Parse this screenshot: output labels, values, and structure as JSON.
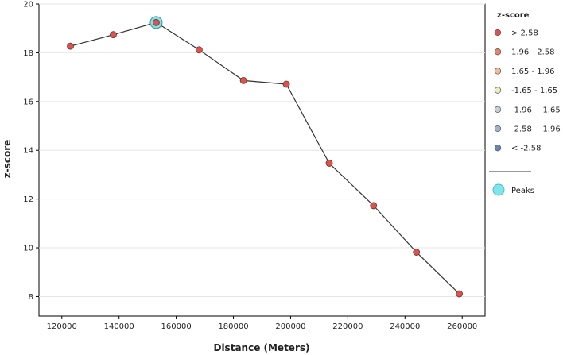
{
  "chart_data": {
    "type": "line",
    "xlabel": "Distance (Meters)",
    "ylabel": "z-score",
    "xlim": [
      112000,
      268000
    ],
    "ylim": [
      7.2,
      20
    ],
    "xticks": [
      120000,
      140000,
      160000,
      180000,
      200000,
      220000,
      240000,
      260000
    ],
    "yticks": [
      8,
      10,
      12,
      14,
      16,
      18,
      20
    ],
    "grid": "horizontal",
    "legend_position": "right",
    "series": [
      {
        "x": [
          123000,
          138000,
          153000,
          168000,
          183500,
          198500,
          213500,
          229000,
          244000,
          259000
        ],
        "y": [
          18.27,
          18.74,
          19.24,
          18.12,
          16.86,
          16.71,
          13.47,
          11.73,
          9.82,
          8.11
        ],
        "z_class": [
          "> 2.58",
          "> 2.58",
          "> 2.58",
          "> 2.58",
          "> 2.58",
          "> 2.58",
          "> 2.58",
          "> 2.58",
          "> 2.58",
          "> 2.58"
        ]
      }
    ],
    "peaks": [
      {
        "x": 153000,
        "y": 19.24
      }
    ],
    "legend": {
      "title": "z-score",
      "items": [
        {
          "label": "> 2.58",
          "color": "#d9534f"
        },
        {
          "label": "1.96 - 2.58",
          "color": "#e8826a"
        },
        {
          "label": "1.65 - 1.96",
          "color": "#f2bc98"
        },
        {
          "label": "-1.65 - 1.65",
          "color": "#ededc4"
        },
        {
          "label": "-1.96 - -1.65",
          "color": "#c9ced3"
        },
        {
          "label": "-2.58 - -1.96",
          "color": "#9fb3c8"
        },
        {
          "label": "< -2.58",
          "color": "#6a86ad"
        }
      ],
      "peaks_label": "Peaks",
      "peaks_color": "#7fe5ea"
    }
  }
}
